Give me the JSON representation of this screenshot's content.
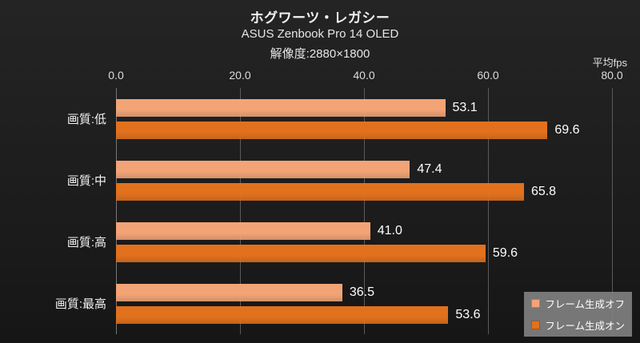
{
  "header": {
    "title": "ホグワーツ・レガシー",
    "subtitle_model": "ASUS Zenbook Pro 14 OLED",
    "subtitle_resolution": "解像度:2880×1800",
    "axis_unit": "平均fps"
  },
  "chart_data": {
    "type": "bar",
    "orientation": "horizontal",
    "title": "ホグワーツ・レガシー",
    "subtitle": "ASUS Zenbook Pro 14 OLED 解像度:2880×1800",
    "xlabel": "平均fps",
    "ylabel": "",
    "xlim": [
      0,
      80
    ],
    "xticks": [
      "0.0",
      "20.0",
      "40.0",
      "60.0",
      "80.0"
    ],
    "grid": true,
    "legend_position": "bottom-right",
    "categories": [
      "画質:低",
      "画質:中",
      "画質:高",
      "画質:最高"
    ],
    "series": [
      {
        "name": "フレーム生成オフ",
        "color": "#f2a477",
        "values": [
          53.1,
          47.4,
          41.0,
          36.5
        ]
      },
      {
        "name": "フレーム生成オン",
        "color": "#e2711d",
        "values": [
          69.6,
          65.8,
          59.6,
          53.6
        ]
      }
    ],
    "colors": {
      "series_off": "#f2a477",
      "series_on": "#e2711d",
      "gridline": "#5a5a5a",
      "background": "#1d1d1d",
      "legend_bg": "#808080"
    }
  }
}
